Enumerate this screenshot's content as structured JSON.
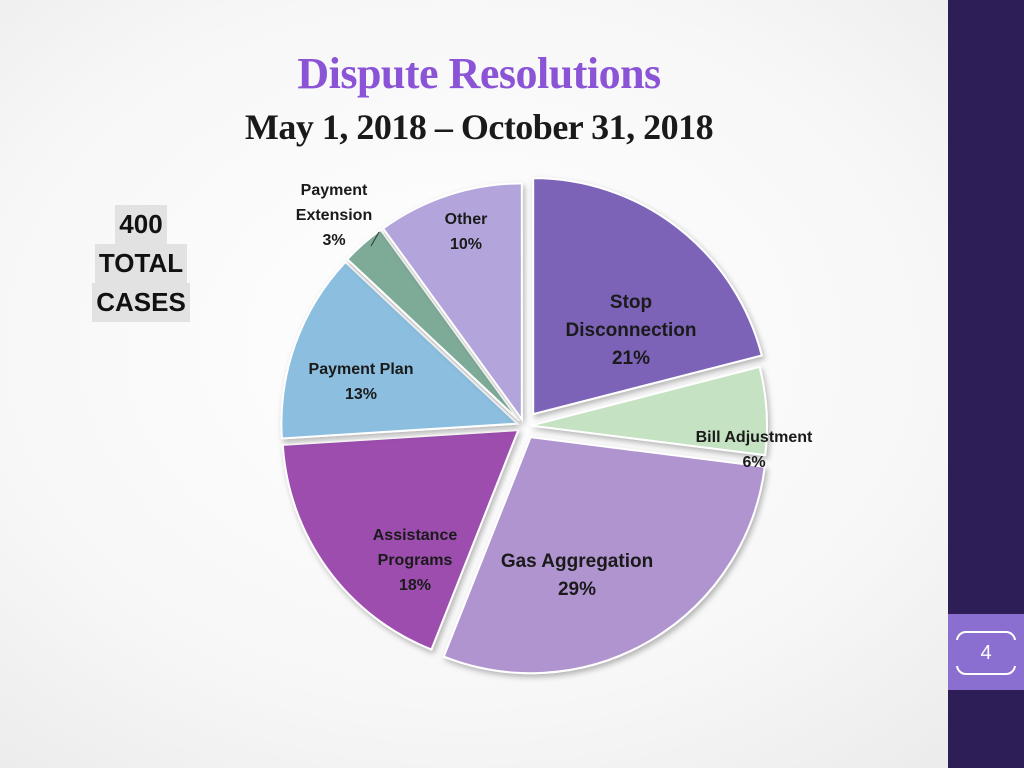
{
  "slide": {
    "title": "Dispute Resolutions",
    "subtitle": "May 1, 2018 – October 31, 2018",
    "title_color": "#8b54d6",
    "total": {
      "number": "400",
      "line2": "TOTAL",
      "line3": "CASES"
    },
    "page_number": "4"
  },
  "chart_data": {
    "type": "pie",
    "title": "",
    "start_angle_deg": 0,
    "direction": "clockwise",
    "slices": [
      {
        "label": [
          "Stop",
          "Disconnection"
        ],
        "pct_label": "21%",
        "value": 21,
        "color": "#7b63b8"
      },
      {
        "label": [
          "Bill Adjustment"
        ],
        "pct_label": "6%",
        "value": 6,
        "color": "#c5e2c2"
      },
      {
        "label": [
          "Gas Aggregation"
        ],
        "pct_label": "29%",
        "value": 29,
        "color": "#b094d0"
      },
      {
        "label": [
          "Assistance",
          "Programs"
        ],
        "pct_label": "18%",
        "value": 18,
        "color": "#9c4dae"
      },
      {
        "label": [
          "Payment Plan"
        ],
        "pct_label": "13%",
        "value": 13,
        "color": "#8bbedf"
      },
      {
        "label": [
          "Payment",
          "Extension"
        ],
        "pct_label": "3%",
        "value": 3,
        "color": "#7eaa98"
      },
      {
        "label": [
          "Other"
        ],
        "pct_label": "10%",
        "value": 10,
        "color": "#b3a5dc"
      }
    ]
  }
}
